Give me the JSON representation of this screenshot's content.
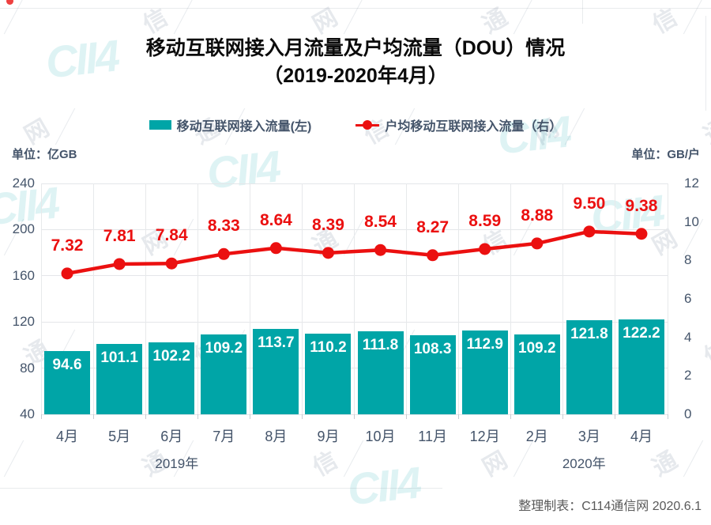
{
  "title": {
    "line1": "移动互联网接入月流量及户均流量（DOU）情况",
    "line2": "（2019-2020年4月）"
  },
  "legend": [
    {
      "label": "移动互联网接入流量(左)",
      "color": "#00A5A7",
      "type": "bar"
    },
    {
      "label": "户均移动互联网接入流量（右）",
      "color": "#EB1010",
      "type": "line"
    }
  ],
  "units": {
    "left": "单位：亿GB",
    "right": "单位：GB/户"
  },
  "chart_data": {
    "type": "bar",
    "categories": [
      "4月",
      "5月",
      "6月",
      "7月",
      "8月",
      "9月",
      "10月",
      "11月",
      "12月",
      "2月",
      "3月",
      "4月"
    ],
    "year_groups": [
      {
        "label": "2019年",
        "span": [
          0,
          8
        ]
      },
      {
        "label": "2020年",
        "span": [
          9,
          11
        ]
      }
    ],
    "series": [
      {
        "name": "移动互联网接入流量(左)",
        "type": "bar",
        "axis": "left",
        "color": "#00A5A7",
        "values": [
          94.6,
          101.1,
          102.2,
          109.2,
          113.7,
          110.2,
          111.8,
          108.3,
          112.9,
          109.2,
          121.8,
          122.2
        ],
        "labels": [
          "94.6",
          "101.1",
          "102.2",
          "109.2",
          "113.7",
          "110.2",
          "111.8",
          "108.3",
          "112.9",
          "109.2",
          "121.8",
          "122.2"
        ]
      },
      {
        "name": "户均移动互联网接入流量（右）",
        "type": "line",
        "axis": "right",
        "color": "#EB1010",
        "values": [
          7.32,
          7.81,
          7.84,
          8.33,
          8.64,
          8.39,
          8.54,
          8.27,
          8.59,
          8.88,
          9.5,
          9.38
        ],
        "labels": [
          "7.32",
          "7.81",
          "7.84",
          "8.33",
          "8.64",
          "8.39",
          "8.54",
          "8.27",
          "8.59",
          "8.88",
          "9.50",
          "9.38"
        ]
      }
    ],
    "left_axis": {
      "ticks": [
        240,
        200,
        160,
        120,
        80,
        40
      ],
      "min": 40,
      "max": 240
    },
    "right_axis": {
      "ticks": [
        12,
        10,
        8,
        6,
        4,
        2,
        0
      ],
      "min": 0,
      "max": 12
    },
    "grid": true,
    "legend_position": "top"
  },
  "footer": {
    "credit": "整理制表：C114通信网 2020.6.1"
  },
  "watermark": {
    "chars": [
      "通",
      "信",
      "网"
    ],
    "logo": "CII4"
  }
}
